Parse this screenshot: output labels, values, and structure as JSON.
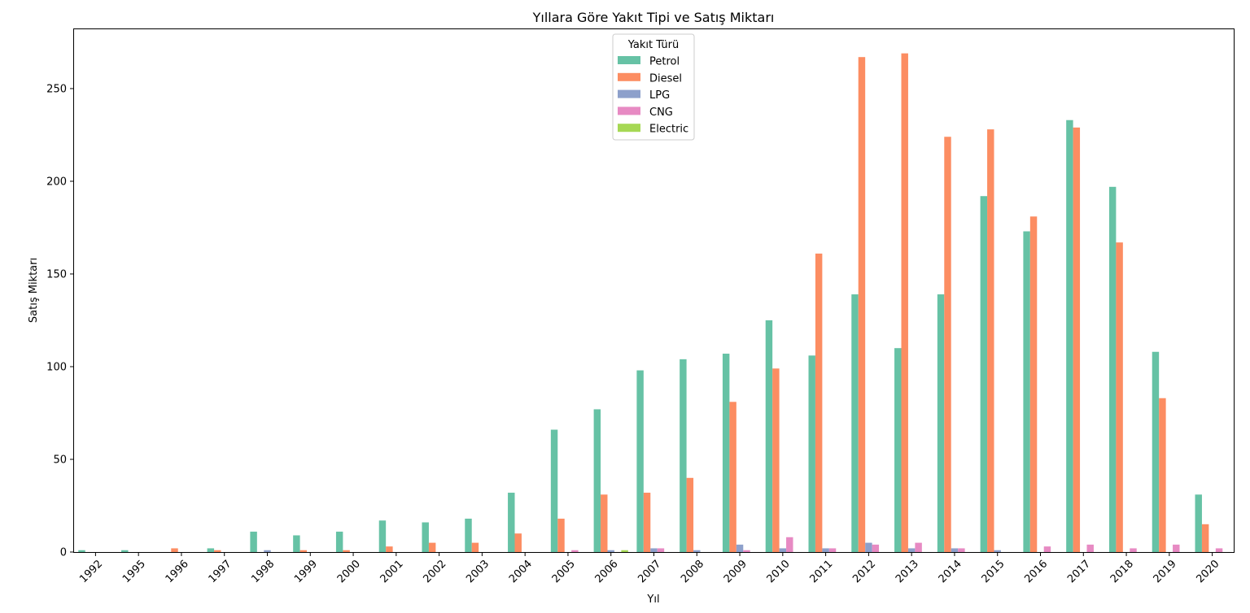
{
  "chart_data": {
    "type": "bar",
    "title": "Yıllara Göre Yakıt Tipi ve Satış Miktarı",
    "xlabel": "Yıl",
    "ylabel": "Satış Miktarı",
    "ylim": [
      0,
      282
    ],
    "yticks": [
      0,
      50,
      100,
      150,
      200,
      250
    ],
    "grid": false,
    "legend": {
      "title": "Yakıt Türü",
      "placement": "top-center"
    },
    "categories": [
      "1992",
      "1995",
      "1996",
      "1997",
      "1998",
      "1999",
      "2000",
      "2001",
      "2002",
      "2003",
      "2004",
      "2005",
      "2006",
      "2007",
      "2008",
      "2009",
      "2010",
      "2011",
      "2012",
      "2013",
      "2014",
      "2015",
      "2016",
      "2017",
      "2018",
      "2019",
      "2020"
    ],
    "series": [
      {
        "name": "Petrol",
        "color": "#66c2a5",
        "values": [
          1,
          1,
          0,
          2,
          11,
          9,
          11,
          17,
          16,
          18,
          32,
          66,
          77,
          98,
          104,
          107,
          125,
          106,
          139,
          110,
          139,
          192,
          173,
          233,
          197,
          108,
          31
        ]
      },
      {
        "name": "Diesel",
        "color": "#fc8d62",
        "values": [
          0,
          0,
          2,
          1,
          0,
          1,
          1,
          3,
          5,
          5,
          10,
          18,
          31,
          32,
          40,
          81,
          99,
          161,
          267,
          269,
          224,
          228,
          181,
          229,
          167,
          83,
          15
        ]
      },
      {
        "name": "LPG",
        "color": "#8da0cb",
        "values": [
          0,
          0,
          0,
          0,
          1,
          0,
          0,
          0,
          0,
          0,
          0,
          0,
          1,
          2,
          1,
          4,
          2,
          2,
          5,
          2,
          2,
          1,
          0,
          0,
          0,
          0,
          0
        ]
      },
      {
        "name": "CNG",
        "color": "#e78ac3",
        "values": [
          0,
          0,
          0,
          0,
          0,
          0,
          0,
          0,
          0,
          0,
          0,
          1,
          0,
          2,
          0,
          1,
          8,
          2,
          4,
          5,
          2,
          0,
          3,
          4,
          2,
          4,
          2
        ]
      },
      {
        "name": "Electric",
        "color": "#a6d854",
        "values": [
          0,
          0,
          0,
          0,
          0,
          0,
          0,
          0,
          0,
          0,
          0,
          0,
          1,
          0,
          0,
          0,
          0,
          0,
          0,
          0,
          0,
          0,
          0,
          0,
          0,
          0,
          0
        ]
      }
    ]
  }
}
